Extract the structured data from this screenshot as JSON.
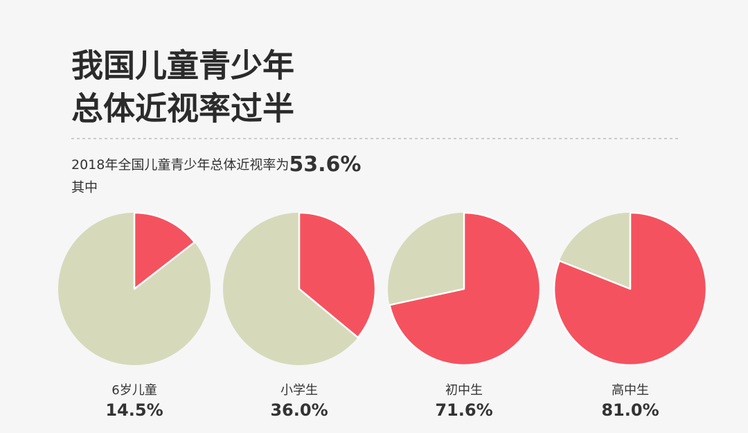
{
  "title_lines": [
    "我国儿童青少年",
    "总体近视率过半"
  ],
  "summary": {
    "text": "2018年全国儿童青少年总体近视率为",
    "value": 53.6,
    "value_label": "53.6%"
  },
  "note": "其中",
  "chart_data": [
    {
      "type": "pie",
      "label": "6岁儿童",
      "values": [
        14.5
      ],
      "value_labels": [
        "14.5%"
      ],
      "color": "#f5525f",
      "rest_color": "#d6dabb"
    },
    {
      "type": "pie",
      "label": "小学生",
      "values": [
        36.0
      ],
      "value_labels": [
        "36.0%"
      ],
      "color": "#f5525f",
      "rest_color": "#d6dabb"
    },
    {
      "type": "pie",
      "label": "初中生",
      "values": [
        71.6
      ],
      "value_labels": [
        "71.6%"
      ],
      "color": "#f5525f",
      "rest_color": "#d6dabb"
    },
    {
      "type": "pie",
      "label": "高中生",
      "values": [
        81.0
      ],
      "value_labels": [
        "81.0%"
      ],
      "color": "#f5525f",
      "rest_color": "#d6dabb"
    }
  ]
}
